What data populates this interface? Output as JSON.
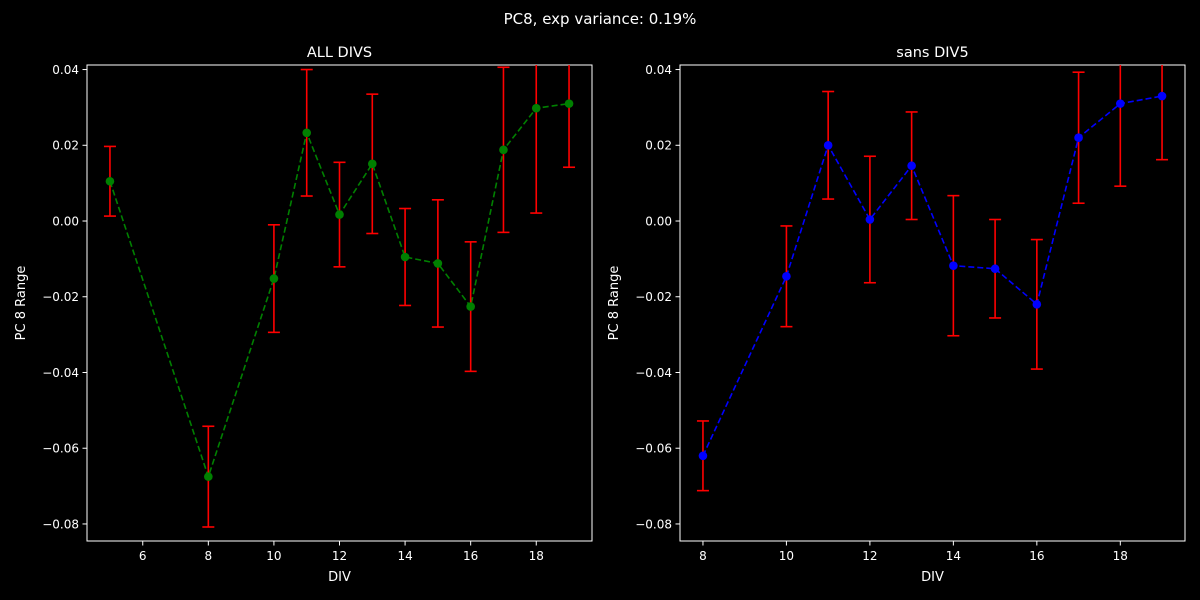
{
  "suptitle": "PC8, exp variance: 0.19%",
  "chart_data": [
    {
      "type": "line",
      "title": "ALL DIVS",
      "xlabel": "DIV",
      "ylabel": "PC 8 Range",
      "xlim": [
        4.3,
        19.7
      ],
      "ylim": [
        -0.0845,
        0.0412
      ],
      "xticks": [
        6,
        8,
        10,
        12,
        14,
        16,
        18
      ],
      "yticks": [
        -0.08,
        -0.06,
        -0.04,
        -0.02,
        0.0,
        0.02,
        0.04
      ],
      "ytick_labels": [
        "−0.08",
        "−0.06",
        "−0.04",
        "−0.02",
        "0.00",
        "0.02",
        "0.04"
      ],
      "line_color": "#008000",
      "marker_color": "#008000",
      "errorbar_color": "#ff0000",
      "line_style": "dashed",
      "points": [
        {
          "x": 5,
          "y": 0.0105,
          "err": 0.0092
        },
        {
          "x": 8,
          "y": -0.0675,
          "err": 0.0133
        },
        {
          "x": 10,
          "y": -0.0152,
          "err": 0.0142
        },
        {
          "x": 11,
          "y": 0.0233,
          "err": 0.0167
        },
        {
          "x": 12,
          "y": 0.0017,
          "err": 0.0138
        },
        {
          "x": 13,
          "y": 0.0151,
          "err": 0.0184
        },
        {
          "x": 14,
          "y": -0.0095,
          "err": 0.0128
        },
        {
          "x": 15,
          "y": -0.0112,
          "err": 0.0168
        },
        {
          "x": 16,
          "y": -0.0226,
          "err": 0.0171
        },
        {
          "x": 17,
          "y": 0.0188,
          "err": 0.0218
        },
        {
          "x": 18,
          "y": 0.0298,
          "err": 0.0277
        },
        {
          "x": 19,
          "y": 0.031,
          "err": 0.0168
        }
      ]
    },
    {
      "type": "line",
      "title": "sans DIV5",
      "xlabel": "DIV",
      "ylabel": "PC 8 Range",
      "xlim": [
        7.45,
        19.55
      ],
      "ylim": [
        -0.0845,
        0.0412
      ],
      "xticks": [
        8,
        10,
        12,
        14,
        16,
        18
      ],
      "yticks": [
        -0.08,
        -0.06,
        -0.04,
        -0.02,
        0.0,
        0.02,
        0.04
      ],
      "ytick_labels": [
        "−0.08",
        "−0.06",
        "−0.04",
        "−0.02",
        "0.00",
        "0.02",
        "0.04"
      ],
      "line_color": "#0000ff",
      "marker_color": "#0000ff",
      "errorbar_color": "#ff0000",
      "line_style": "dashed",
      "points": [
        {
          "x": 8,
          "y": -0.062,
          "err": 0.0092
        },
        {
          "x": 10,
          "y": -0.0146,
          "err": 0.0133
        },
        {
          "x": 11,
          "y": 0.02,
          "err": 0.0142
        },
        {
          "x": 12,
          "y": 0.0004,
          "err": 0.0167
        },
        {
          "x": 13,
          "y": 0.0146,
          "err": 0.0142
        },
        {
          "x": 14,
          "y": -0.0118,
          "err": 0.0185
        },
        {
          "x": 15,
          "y": -0.0126,
          "err": 0.013
        },
        {
          "x": 16,
          "y": -0.022,
          "err": 0.0171
        },
        {
          "x": 17,
          "y": 0.022,
          "err": 0.0173
        },
        {
          "x": 18,
          "y": 0.031,
          "err": 0.0218
        },
        {
          "x": 19,
          "y": 0.033,
          "err": 0.0168
        }
      ]
    }
  ]
}
